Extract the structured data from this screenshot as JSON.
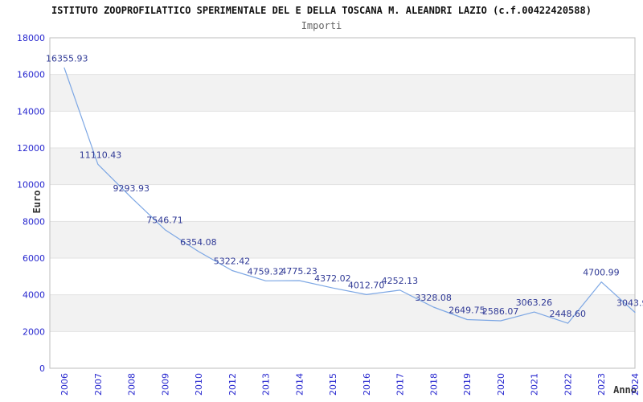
{
  "header": {
    "title": "ISTITUTO ZOOPROFILATTICO SPERIMENTALE DEL E DELLA TOSCANA M. ALEANDRI LAZIO (c.f.00422420588)",
    "subtitle": "Importi"
  },
  "chart_data": {
    "type": "line",
    "title": "ISTITUTO ZOOPROFILATTICO SPERIMENTALE DEL E DELLA TOSCANA M. ALEANDRI LAZIO (c.f.00422420588)",
    "subtitle": "Importi",
    "xlabel": "Anno",
    "ylabel": "Euro",
    "categories": [
      "2006",
      "2007",
      "2008",
      "2009",
      "2010",
      "2012",
      "2013",
      "2014",
      "2015",
      "2016",
      "2017",
      "2018",
      "2019",
      "2020",
      "2021",
      "2022",
      "2023",
      "2024"
    ],
    "series": [
      {
        "name": "Importi",
        "values": [
          16355.93,
          11110.43,
          9293.93,
          7546.71,
          6354.08,
          5322.42,
          4759.32,
          4775.23,
          4372.02,
          4012.7,
          4252.13,
          3328.08,
          2649.75,
          2586.07,
          3063.26,
          2448.6,
          4700.99,
          3043.9
        ],
        "point_labels": [
          "16355.93",
          "11110.43",
          "9293.93",
          "7546.71",
          "6354.08",
          "5322.42",
          "4759.32",
          "4775.23",
          "4372.02",
          "4012.70",
          "4252.13",
          "3328.08",
          "2649.75",
          "2586.07",
          "3063.26",
          "2448.60",
          "4700.99",
          "3043.9"
        ]
      }
    ],
    "ylim": [
      0,
      18000
    ],
    "ytick_step": 2000,
    "yticks": [
      0,
      2000,
      4000,
      6000,
      8000,
      10000,
      12000,
      14000,
      16000,
      18000
    ],
    "grid": "horizontal-alternating-bands",
    "legend_position": "none",
    "colors": {
      "line": "#7da7e4",
      "tick_label": "#2727cf",
      "point_label": "#303a96",
      "band": "#f2f2f2",
      "gridline": "#e2e2e2",
      "plot_border": "#bdbdbd"
    }
  }
}
